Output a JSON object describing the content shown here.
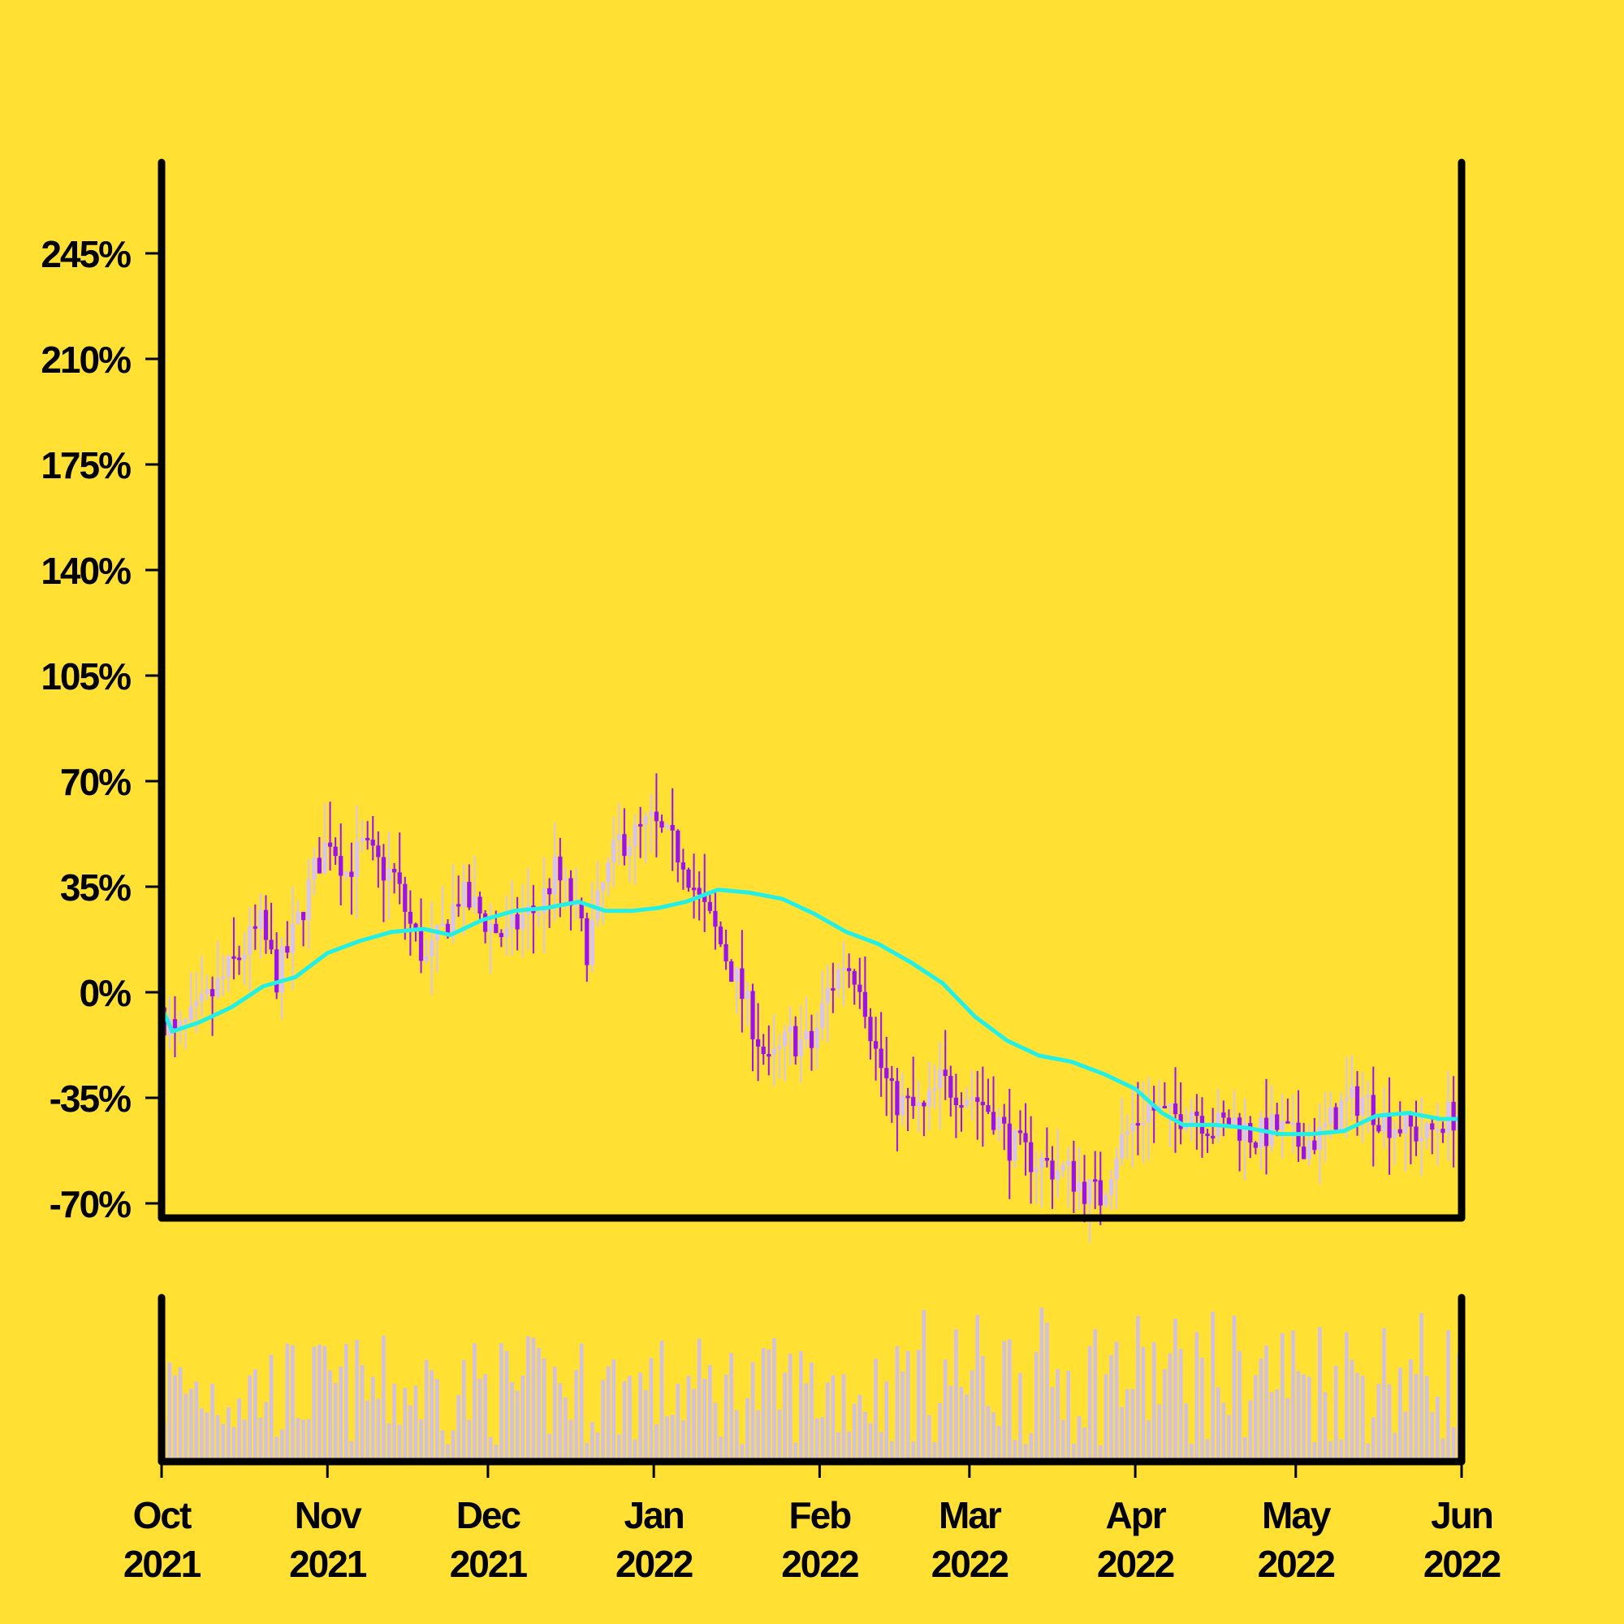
{
  "colors": {
    "background": "#FFE033",
    "axis": "#000000",
    "candle_up": "#D8C4F2",
    "candle_down": "#9B12F2",
    "moving_average": "#22F0E6",
    "volume": "#D2C0E0"
  },
  "chart_data": {
    "type": "candlestick",
    "title": "",
    "xlabel": "",
    "ylabel": "",
    "y_axis": {
      "ylim": [
        -73,
        275
      ],
      "ticks": [
        -70,
        -35,
        0,
        35,
        70,
        105,
        140,
        175,
        210,
        245
      ],
      "tick_labels": [
        "-70%",
        "-35%",
        "0%",
        "35%",
        "70%",
        "105%",
        "140%",
        "175%",
        "210%",
        "245%"
      ]
    },
    "x_axis": {
      "range": [
        "2021-10-01",
        "2022-06-01"
      ],
      "ticks": [
        "2021-10-01",
        "2021-11-01",
        "2021-12-01",
        "2022-01-01",
        "2022-02-01",
        "2022-03-01",
        "2022-04-01",
        "2022-05-01",
        "2022-06-01"
      ],
      "tick_labels": [
        [
          "Oct",
          "2021"
        ],
        [
          "Nov",
          "2021"
        ],
        [
          "Dec",
          "2021"
        ],
        [
          "Jan",
          "2022"
        ],
        [
          "Feb",
          "2022"
        ],
        [
          "Mar",
          "2022"
        ],
        [
          "Apr",
          "2022"
        ],
        [
          "May",
          "2022"
        ],
        [
          "Jun",
          "2022"
        ]
      ]
    },
    "price_path": [
      [
        "2021-10-01",
        -5
      ],
      [
        "2021-10-04",
        -15
      ],
      [
        "2021-10-08",
        -8
      ],
      [
        "2021-10-12",
        2
      ],
      [
        "2021-10-16",
        12
      ],
      [
        "2021-10-20",
        22
      ],
      [
        "2021-10-23",
        5
      ],
      [
        "2021-10-26",
        18
      ],
      [
        "2021-10-30",
        40
      ],
      [
        "2021-11-02",
        52
      ],
      [
        "2021-11-05",
        40
      ],
      [
        "2021-11-08",
        48
      ],
      [
        "2021-11-11",
        42
      ],
      [
        "2021-11-14",
        38
      ],
      [
        "2021-11-17",
        22
      ],
      [
        "2021-11-20",
        10
      ],
      [
        "2021-11-23",
        20
      ],
      [
        "2021-11-26",
        32
      ],
      [
        "2021-11-29",
        28
      ],
      [
        "2021-12-02",
        22
      ],
      [
        "2021-12-05",
        18
      ],
      [
        "2021-12-08",
        25
      ],
      [
        "2021-12-11",
        28
      ],
      [
        "2021-12-14",
        40
      ],
      [
        "2021-12-17",
        30
      ],
      [
        "2021-12-20",
        15
      ],
      [
        "2021-12-23",
        35
      ],
      [
        "2021-12-26",
        50
      ],
      [
        "2021-12-29",
        52
      ],
      [
        "2022-01-01",
        56
      ],
      [
        "2022-01-04",
        50
      ],
      [
        "2022-01-07",
        45
      ],
      [
        "2022-01-10",
        30
      ],
      [
        "2022-01-13",
        20
      ],
      [
        "2022-01-16",
        8
      ],
      [
        "2022-01-20",
        -10
      ],
      [
        "2022-01-23",
        -25
      ],
      [
        "2022-01-27",
        -15
      ],
      [
        "2022-01-31",
        -18
      ],
      [
        "2022-02-03",
        0
      ],
      [
        "2022-02-06",
        10
      ],
      [
        "2022-02-09",
        5
      ],
      [
        "2022-02-12",
        -20
      ],
      [
        "2022-02-15",
        -35
      ],
      [
        "2022-02-18",
        -38
      ],
      [
        "2022-02-21",
        -40
      ],
      [
        "2022-02-24",
        -30
      ],
      [
        "2022-02-27",
        -32
      ],
      [
        "2022-03-02",
        -34
      ],
      [
        "2022-03-06",
        -40
      ],
      [
        "2022-03-09",
        -50
      ],
      [
        "2022-03-13",
        -55
      ],
      [
        "2022-03-17",
        -58
      ],
      [
        "2022-03-20",
        -60
      ],
      [
        "2022-03-23",
        -65
      ],
      [
        "2022-03-26",
        -68
      ],
      [
        "2022-03-29",
        -52
      ],
      [
        "2022-04-01",
        -44
      ],
      [
        "2022-04-04",
        -38
      ],
      [
        "2022-04-08",
        -42
      ],
      [
        "2022-04-12",
        -38
      ],
      [
        "2022-04-16",
        -45
      ],
      [
        "2022-04-20",
        -43
      ],
      [
        "2022-04-24",
        -48
      ],
      [
        "2022-04-28",
        -45
      ],
      [
        "2022-05-02",
        -50
      ],
      [
        "2022-05-06",
        -48
      ],
      [
        "2022-05-10",
        -38
      ],
      [
        "2022-05-14",
        -35
      ],
      [
        "2022-05-18",
        -42
      ],
      [
        "2022-05-22",
        -45
      ],
      [
        "2022-05-26",
        -48
      ],
      [
        "2022-05-29",
        -42
      ],
      [
        "2022-06-01",
        -40
      ]
    ],
    "moving_average": [
      [
        "2021-10-01",
        -5
      ],
      [
        "2021-10-03",
        -13
      ],
      [
        "2021-10-08",
        -10
      ],
      [
        "2021-10-14",
        -5
      ],
      [
        "2021-10-20",
        2
      ],
      [
        "2021-10-26",
        5
      ],
      [
        "2021-11-01",
        13
      ],
      [
        "2021-11-07",
        17
      ],
      [
        "2021-11-13",
        20
      ],
      [
        "2021-11-19",
        21
      ],
      [
        "2021-11-24",
        19
      ],
      [
        "2021-11-30",
        24
      ],
      [
        "2021-12-06",
        27
      ],
      [
        "2021-12-12",
        28
      ],
      [
        "2021-12-18",
        30
      ],
      [
        "2021-12-23",
        27
      ],
      [
        "2021-12-28",
        27
      ],
      [
        "2022-01-02",
        28
      ],
      [
        "2022-01-07",
        30
      ],
      [
        "2022-01-13",
        34
      ],
      [
        "2022-01-19",
        33
      ],
      [
        "2022-01-25",
        31
      ],
      [
        "2022-01-31",
        26
      ],
      [
        "2022-02-06",
        20
      ],
      [
        "2022-02-12",
        16
      ],
      [
        "2022-02-18",
        10
      ],
      [
        "2022-02-24",
        3
      ],
      [
        "2022-03-02",
        -8
      ],
      [
        "2022-03-08",
        -16
      ],
      [
        "2022-03-14",
        -21
      ],
      [
        "2022-03-20",
        -23
      ],
      [
        "2022-03-26",
        -27
      ],
      [
        "2022-04-01",
        -32
      ],
      [
        "2022-04-06",
        -40
      ],
      [
        "2022-04-10",
        -44
      ],
      [
        "2022-04-16",
        -44
      ],
      [
        "2022-04-22",
        -45
      ],
      [
        "2022-04-28",
        -47
      ],
      [
        "2022-05-04",
        -47
      ],
      [
        "2022-05-10",
        -46
      ],
      [
        "2022-05-16",
        -41
      ],
      [
        "2022-05-22",
        -40
      ],
      [
        "2022-05-28",
        -42
      ],
      [
        "2022-06-01",
        -42
      ]
    ],
    "volume_panel": {
      "axis_labels": false
    }
  }
}
